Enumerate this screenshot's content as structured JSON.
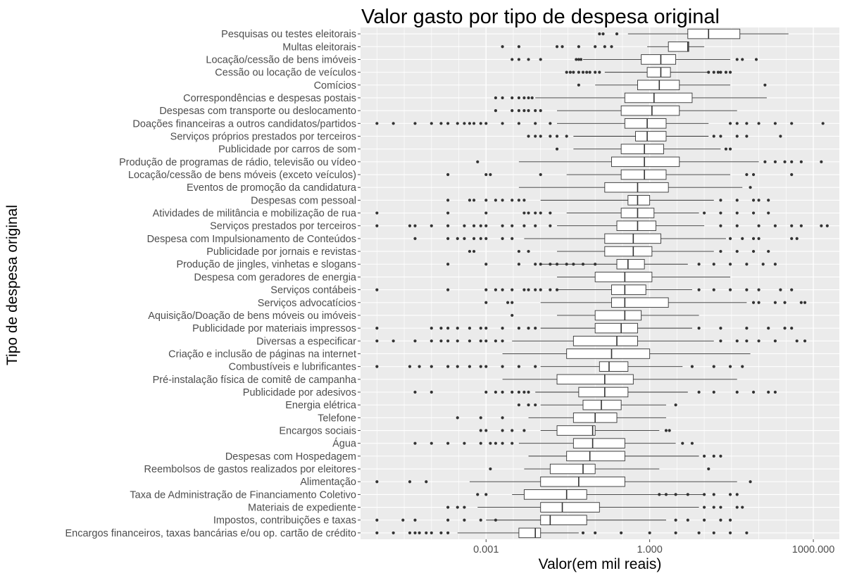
{
  "chart_data": {
    "type": "boxplot",
    "title": "Valor gasto por tipo de despesa original",
    "xlabel": "Valor(em mil reais)",
    "ylabel": "Tipo de despesa original",
    "x_scale": "log10",
    "xlim": [
      5e-06,
      3000
    ],
    "x_ticks": [
      0.001,
      1,
      1000
    ],
    "x_tick_labels": [
      "0.001",
      "1.000",
      "1000.000"
    ],
    "grid": true,
    "panel_background": "#ebebeb",
    "box_fill": "#ffffff",
    "outlier_color": "#333333",
    "categories": [
      {
        "label": "Pesquisas ou testes eleitorais",
        "whisker_low": 0.4,
        "q1": 5,
        "median": 12,
        "q3": 45,
        "whisker_high": 350,
        "outliers": [
          0.12,
          0.14,
          0.25
        ]
      },
      {
        "label": "Multas eleitorais",
        "whisker_low": 0.9,
        "q1": 2.2,
        "median": 5,
        "q3": 5.2,
        "whisker_high": 10,
        "outliers": [
          0.002,
          0.004,
          0.02,
          0.025,
          0.05,
          0.1,
          0.15,
          0.2
        ]
      },
      {
        "label": "Locação/cessão de bens imóveis",
        "whisker_low": 0.06,
        "q1": 0.7,
        "median": 1.6,
        "q3": 3,
        "whisker_high": 30,
        "outliers": [
          0.003,
          0.004,
          0.006,
          0.01,
          0.045,
          0.05,
          0.055,
          40,
          50,
          90
        ]
      },
      {
        "label": "Cessão ou locação de veículos",
        "whisker_low": 0.15,
        "q1": 0.9,
        "median": 1.6,
        "q3": 2.4,
        "whisker_high": 12,
        "outliers": [
          0.03,
          0.035,
          0.04,
          0.05,
          0.06,
          0.07,
          0.08,
          0.1,
          0.12,
          12,
          15,
          18,
          20,
          25,
          30
        ]
      },
      {
        "label": "Comícios",
        "whisker_low": 0.1,
        "q1": 0.6,
        "median": 1.5,
        "q3": 3.5,
        "whisker_high": 30,
        "outliers": [
          0.05,
          130
        ]
      },
      {
        "label": "Correspondências e despesas postais",
        "whisker_low": 0.008,
        "q1": 0.35,
        "median": 1.2,
        "q3": 6,
        "whisker_high": 140,
        "outliers": [
          0.0015,
          0.002,
          0.003,
          0.004,
          0.005,
          0.006,
          0.007
        ]
      },
      {
        "label": "Despesas com transporte ou deslocamento",
        "whisker_low": 0.02,
        "q1": 0.3,
        "median": 1.1,
        "q3": 3.5,
        "whisker_high": 40,
        "outliers": [
          0.0015,
          0.003,
          0.004,
          0.005,
          0.006,
          0.008,
          0.01
        ]
      },
      {
        "label": "Doações financeiras a outros candidatos/partidos",
        "whisker_low": 0.02,
        "q1": 0.35,
        "median": 0.9,
        "q3": 2,
        "whisker_high": 12,
        "outliers": [
          1e-05,
          2e-05,
          5e-05,
          0.0001,
          0.00015,
          0.0002,
          0.0003,
          0.0004,
          0.0005,
          0.0006,
          0.0008,
          0.001,
          0.002,
          0.004,
          0.008,
          0.015,
          30,
          40,
          60,
          100,
          200,
          400,
          1500
        ]
      },
      {
        "label": "Serviços próprios prestados por terceiros",
        "whisker_low": 0.04,
        "q1": 0.55,
        "median": 0.9,
        "q3": 2,
        "whisker_high": 12,
        "outliers": [
          0.006,
          0.008,
          0.01,
          0.015,
          0.02,
          0.03,
          15,
          20,
          40,
          60,
          250
        ]
      },
      {
        "label": "Publicidade por carros de som",
        "whisker_low": 0.04,
        "q1": 0.3,
        "median": 0.8,
        "q3": 1.8,
        "whisker_high": 20,
        "outliers": [
          0.02,
          25,
          30
        ]
      },
      {
        "label": "Produção de programas de rádio, televisão ou vídeo",
        "whisker_low": 0.004,
        "q1": 0.2,
        "median": 0.8,
        "q3": 3.5,
        "whisker_high": 100,
        "outliers": [
          0.0007,
          130,
          200,
          300,
          400,
          600,
          1400
        ]
      },
      {
        "label": "Locação/cessão de bens móveis (exceto veículos)",
        "whisker_low": 0.03,
        "q1": 0.3,
        "median": 0.8,
        "q3": 2,
        "whisker_high": 30,
        "outliers": [
          0.0002,
          0.001,
          0.0012,
          0.01,
          60,
          80,
          400
        ]
      },
      {
        "label": "Eventos de promoção da candidatura",
        "whisker_low": 0.004,
        "q1": 0.15,
        "median": 0.6,
        "q3": 2.2,
        "whisker_high": 50,
        "outliers": [
          70
        ]
      },
      {
        "label": "Despesas com pessoal",
        "whisker_low": 0.01,
        "q1": 0.4,
        "median": 0.6,
        "q3": 1,
        "whisker_high": 15,
        "outliers": [
          0.0002,
          0.0005,
          0.0006,
          0.001,
          0.0015,
          0.002,
          0.003,
          0.004,
          0.005,
          20,
          40,
          80,
          100,
          150
        ]
      },
      {
        "label": "Atividades de militância e mobilização de rua",
        "whisker_low": 0.03,
        "q1": 0.3,
        "median": 0.6,
        "q3": 1.2,
        "whisker_high": 8,
        "outliers": [
          1e-05,
          0.0002,
          0.001,
          0.005,
          0.006,
          0.008,
          0.01,
          0.015,
          10,
          20,
          40,
          80,
          150
        ]
      },
      {
        "label": "Serviços prestados por terceiros",
        "whisker_low": 0.02,
        "q1": 0.25,
        "median": 0.6,
        "q3": 1.3,
        "whisker_high": 10,
        "outliers": [
          1e-05,
          4e-05,
          5e-05,
          0.0001,
          0.0002,
          0.0004,
          0.0006,
          0.0008,
          0.001,
          0.002,
          0.003,
          0.005,
          0.008,
          0.015,
          20,
          40,
          100,
          200,
          400,
          600,
          1400,
          1800
        ]
      },
      {
        "label": "Despesa com Impulsionamento de Conteúdos",
        "whisker_low": 0.005,
        "q1": 0.15,
        "median": 0.5,
        "q3": 1.6,
        "whisker_high": 25,
        "outliers": [
          5e-05,
          0.0002,
          0.0003,
          0.0004,
          0.0006,
          0.0008,
          0.001,
          0.002,
          0.003,
          30,
          50,
          80,
          100,
          400,
          500
        ]
      },
      {
        "label": "Publicidade por jornais e revistas",
        "whisker_low": 0.02,
        "q1": 0.15,
        "median": 0.5,
        "q3": 1.1,
        "whisker_high": 15,
        "outliers": [
          0.0005,
          0.0006,
          0.004,
          0.006,
          20,
          40,
          80,
          150
        ]
      },
      {
        "label": "Produção de jingles, vinhetas e slogans",
        "whisker_low": 0.01,
        "q1": 0.25,
        "median": 0.4,
        "q3": 0.8,
        "whisker_high": 5,
        "outliers": [
          0.0002,
          0.001,
          0.004,
          0.008,
          0.01,
          0.015,
          0.02,
          0.03,
          0.04,
          0.06,
          0.1,
          8,
          15,
          30,
          60,
          120,
          200
        ]
      },
      {
        "label": "Despesa com geradores de energia",
        "whisker_low": 0.02,
        "q1": 0.1,
        "median": 0.35,
        "q3": 1.1,
        "whisker_high": 30,
        "outliers": []
      },
      {
        "label": "Serviços contábeis",
        "whisker_low": 0.02,
        "q1": 0.2,
        "median": 0.35,
        "q3": 0.85,
        "whisker_high": 6,
        "outliers": [
          1e-05,
          0.0002,
          0.001,
          0.0015,
          0.002,
          0.003,
          0.005,
          0.006,
          0.008,
          0.01,
          0.015,
          0.02,
          8,
          15,
          30,
          60,
          100,
          250,
          400
        ]
      },
      {
        "label": "Serviços advocatícios",
        "whisker_low": 0.01,
        "q1": 0.2,
        "median": 0.35,
        "q3": 2.2,
        "whisker_high": 60,
        "outliers": [
          0.001,
          0.0025,
          0.003,
          80,
          100,
          200,
          300,
          600,
          700
        ]
      },
      {
        "label": "Aquisição/Doação de bens móveis ou imóveis",
        "whisker_low": 0.02,
        "q1": 0.1,
        "median": 0.35,
        "q3": 0.7,
        "whisker_high": 8,
        "outliers": [
          0.003
        ]
      },
      {
        "label": "Publicidade por materiais impressos",
        "whisker_low": 0.01,
        "q1": 0.1,
        "median": 0.3,
        "q3": 0.6,
        "whisker_high": 6,
        "outliers": [
          1e-05,
          0.0001,
          0.00015,
          0.0002,
          0.0003,
          0.0005,
          0.0008,
          0.001,
          0.002,
          0.004,
          0.006,
          0.008,
          8,
          20,
          60,
          150,
          300,
          400
        ]
      },
      {
        "label": "Diversas a especificar",
        "whisker_low": 0.003,
        "q1": 0.04,
        "median": 0.25,
        "q3": 0.6,
        "whisker_high": 15,
        "outliers": [
          1e-05,
          2e-05,
          5e-05,
          0.0001,
          0.00015,
          0.0002,
          0.0003,
          0.0005,
          0.0008,
          0.001,
          0.0015,
          0.002,
          20,
          40,
          60,
          100,
          200,
          500,
          700
        ]
      },
      {
        "label": "Criação e inclusão de páginas na internet",
        "whisker_low": 0.002,
        "q1": 0.03,
        "median": 0.2,
        "q3": 1,
        "whisker_high": 70,
        "outliers": []
      },
      {
        "label": "Combustíveis e lubrificantes",
        "whisker_low": 0.01,
        "q1": 0.12,
        "median": 0.18,
        "q3": 0.4,
        "whisker_high": 4,
        "outliers": [
          1e-05,
          4e-05,
          6e-05,
          0.0001,
          0.0002,
          0.0003,
          0.0005,
          0.0008,
          0.001,
          0.002,
          0.004,
          0.008,
          6,
          15,
          30,
          50
        ]
      },
      {
        "label": "Pré-instalação física de comitê de campanha",
        "whisker_low": 0.002,
        "q1": 0.02,
        "median": 0.15,
        "q3": 0.5,
        "whisker_high": 40,
        "outliers": []
      },
      {
        "label": "Publicidade por adesivos",
        "whisker_low": 0.008,
        "q1": 0.05,
        "median": 0.15,
        "q3": 0.4,
        "whisker_high": 5,
        "outliers": [
          5e-05,
          0.0001,
          0.001,
          0.0015,
          0.002,
          0.003,
          0.004,
          0.005,
          0.006,
          8,
          15,
          40,
          80,
          150,
          200
        ]
      },
      {
        "label": "Energia elétrica",
        "whisker_low": 0.01,
        "q1": 0.06,
        "median": 0.13,
        "q3": 0.3,
        "whisker_high": 2,
        "outliers": [
          0.004,
          0.006,
          0.008,
          3
        ]
      },
      {
        "label": "Telefone",
        "whisker_low": 0.006,
        "q1": 0.04,
        "median": 0.1,
        "q3": 0.25,
        "whisker_high": 2,
        "outliers": [
          0.0003,
          0.0008,
          0.002
        ]
      },
      {
        "label": "Encargos sociais",
        "whisker_low": 0.01,
        "q1": 0.02,
        "median": 0.09,
        "q3": 0.1,
        "whisker_high": 1.5,
        "outliers": [
          0.0008,
          0.001,
          0.002,
          0.003,
          0.005,
          2,
          2.3
        ]
      },
      {
        "label": "Água",
        "whisker_low": 0.004,
        "q1": 0.04,
        "median": 0.09,
        "q3": 0.35,
        "whisker_high": 3,
        "outliers": [
          5e-05,
          0.0001,
          0.0002,
          0.0004,
          0.0008,
          0.0012,
          0.0015,
          0.002,
          0.003,
          4,
          6
        ]
      },
      {
        "label": "Despesas com Hospedagem",
        "whisker_low": 0.006,
        "q1": 0.03,
        "median": 0.08,
        "q3": 0.35,
        "whisker_high": 8,
        "outliers": [
          10,
          15,
          20
        ]
      },
      {
        "label": "Reembolsos de gastos realizados por eleitores",
        "whisker_low": 0.005,
        "q1": 0.015,
        "median": 0.06,
        "q3": 0.1,
        "whisker_high": 1.5,
        "outliers": [
          0.0012,
          12
        ]
      },
      {
        "label": "Alimentação",
        "whisker_low": 0.0005,
        "q1": 0.01,
        "median": 0.05,
        "q3": 0.35,
        "whisker_high": 40,
        "outliers": [
          1e-05,
          4e-05,
          8e-05,
          70
        ]
      },
      {
        "label": "Taxa de Administração de Financiamento Coletivo",
        "whisker_low": 0.003,
        "q1": 0.005,
        "median": 0.03,
        "q3": 0.07,
        "whisker_high": 10,
        "outliers": [
          0.0007,
          0.001,
          1.5,
          2,
          3,
          5,
          10,
          15,
          30,
          40
        ]
      },
      {
        "label": "Materiais de expediente",
        "whisker_low": 0.0007,
        "q1": 0.01,
        "median": 0.025,
        "q3": 0.12,
        "whisker_high": 8,
        "outliers": [
          0.0002,
          0.0003,
          0.0004,
          10,
          15,
          20,
          40,
          50
        ]
      },
      {
        "label": "Impostos, contribuições e taxas",
        "whisker_low": 0.001,
        "q1": 0.01,
        "median": 0.015,
        "q3": 0.07,
        "whisker_high": 2,
        "outliers": [
          1e-05,
          3e-05,
          5e-05,
          0.0002,
          0.0004,
          0.0008,
          0.0015,
          3,
          5,
          10,
          20,
          30
        ]
      },
      {
        "label": "Encargos financeiros, taxas bancárias e/ou op. cartão de crédito",
        "whisker_low": 0.0003,
        "q1": 0.004,
        "median": 0.008,
        "q3": 0.01,
        "whisker_high": 0.05,
        "outliers": [
          1e-05,
          2e-05,
          4e-05,
          5e-05,
          6e-05,
          8e-05,
          0.0001,
          0.00015,
          0.0002,
          0.06,
          0.1,
          0.3,
          1,
          3,
          8,
          15,
          30,
          60
        ]
      }
    ]
  }
}
